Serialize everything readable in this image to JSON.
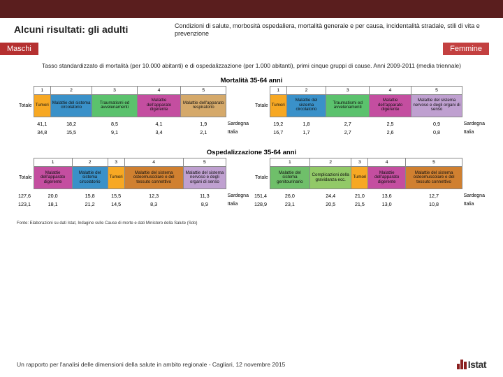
{
  "topbar_color": "#5a1e1e",
  "header": {
    "title": "Alcuni risultati: gli adulti",
    "subtitle": "Condizioni di salute, morbosità ospedaliera, mortalità generale e per causa, incidentalità stradale, stili di vita e prevenzione"
  },
  "tags": {
    "m": "Maschi",
    "f": "Femmine"
  },
  "caption": "Tasso standardizzato di mortalità (per 10.000 abitanti) e di ospedalizzazione (per 1.000 abitanti), primi cinque gruppi di cause. Anni 2009-2011 (media triennale)",
  "section1": {
    "title": "Mortalità 35-64 anni",
    "left": {
      "nums": [
        "1",
        "2",
        "3",
        "4",
        "5"
      ],
      "heads": [
        "Tumori",
        "Malattie del sistema circolatorio",
        "Traumatismi ed avvelenamenti",
        "Malattie dell'apparato digerente",
        "Malattie dell'apparato respiratorio"
      ],
      "colors": [
        "#f7a823",
        "#3a91c9",
        "#5bc26d",
        "#c44ea0",
        "#d5a96a"
      ],
      "rowlabel": "Totale",
      "rows": [
        {
          "region": "Sardegna",
          "vals": [
            "41,1",
            "18,2",
            "8,5",
            "4,1",
            "1,9"
          ]
        },
        {
          "region": "Italia",
          "vals": [
            "34,8",
            "15,5",
            "9,1",
            "3,4",
            "2,1"
          ]
        }
      ]
    },
    "right": {
      "nums": [
        "1",
        "2",
        "3",
        "4",
        "5"
      ],
      "heads": [
        "Tumori",
        "Malattie del sistema circolatorio",
        "Traumatismi ed avvelenamenti",
        "Malattie dell'apparato digerente",
        "Malattie del sistema nervoso e degli organi di senso"
      ],
      "colors": [
        "#f7a823",
        "#3a91c9",
        "#5bc26d",
        "#c44ea0",
        "#bfa0d0"
      ],
      "rowlabel": "Totale",
      "rows": [
        {
          "region": "Sardegna",
          "vals": [
            "19,2",
            "1,8",
            "2,7",
            "2,5",
            "0,9"
          ]
        },
        {
          "region": "Italia",
          "vals": [
            "16,7",
            "1,7",
            "2,7",
            "2,6",
            "0,8"
          ]
        }
      ]
    }
  },
  "section2": {
    "title": "Ospedalizzazione 35-64 anni",
    "left": {
      "nums": [
        "1",
        "2",
        "3",
        "4",
        "5"
      ],
      "heads": [
        "Malattie dell'apparato digerente",
        "Malattie del sistema circolatorio",
        "Tumori",
        "Malattie del sistema osteomuscolare e del tessuto connettivo",
        "Malattie del sistema nervoso e degli organi di senso"
      ],
      "colors": [
        "#c44ea0",
        "#3a91c9",
        "#f7a823",
        "#d08030",
        "#bfa0d0"
      ],
      "rowlabel": "Totale",
      "rows": [
        {
          "region": "Sardegna",
          "vals": [
            "127,6",
            "20,0",
            "15,8",
            "15,5",
            "12,3",
            "11,3"
          ]
        },
        {
          "region": "Italia",
          "vals": [
            "123,1",
            "18,1",
            "21,2",
            "14,5",
            "8,3",
            "8,9"
          ]
        }
      ]
    },
    "right": {
      "nums": [
        "1",
        "2",
        "3",
        "4",
        "5"
      ],
      "heads": [
        "Malattie del sistema genitourinario",
        "Complicazioni della gravidanza ecc.",
        "Tumori",
        "Malattie dell'apparato digerente",
        "Malattie del sistema osteomuscolare e del tessuto connettivo"
      ],
      "colors": [
        "#6fbf6a",
        "#92c967",
        "#f7a823",
        "#c44ea0",
        "#d08030"
      ],
      "rowlabel": "Totale",
      "rows": [
        {
          "region": "Sardegna",
          "vals": [
            "151,4",
            "26,0",
            "24,4",
            "21,0",
            "13,6",
            "12,7"
          ]
        },
        {
          "region": "Italia",
          "vals": [
            "128,9",
            "23,1",
            "20,5",
            "21,5",
            "13,0",
            "10,8"
          ]
        }
      ]
    }
  },
  "source": "Fonte: Elaborazioni su dati Istat, Indagine sulle Cause di morte e dati Ministero della Salute (Sdo)",
  "footer": "Un rapporto per l'analisi delle dimensioni della salute in ambito regionale - Cagliari, 12 novembre 2015",
  "logo": "Istat"
}
